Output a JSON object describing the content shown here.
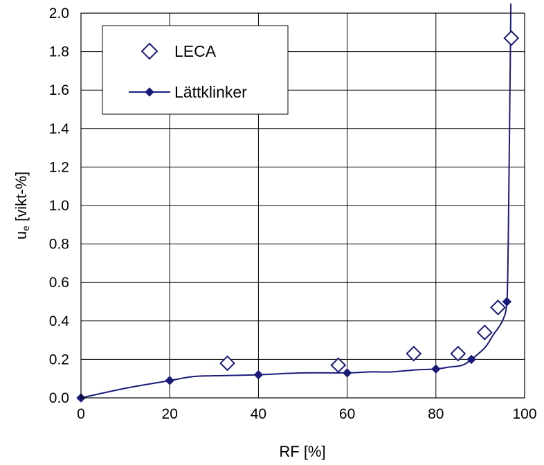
{
  "chart_data": {
    "type": "scatter",
    "xlabel": "RF [%]",
    "ylabel_main": "u",
    "ylabel_sub": "e",
    "ylabel_rest": " [vikt-%]",
    "xlim": [
      0,
      100
    ],
    "ylim": [
      0,
      2.0
    ],
    "x_ticks": [
      "0",
      "20",
      "40",
      "60",
      "80",
      "100"
    ],
    "y_ticks": [
      "0.0",
      "0.2",
      "0.4",
      "0.6",
      "0.8",
      "1.0",
      "1.2",
      "1.4",
      "1.6",
      "1.8",
      "2.0"
    ],
    "grid": true,
    "legend_position": "top-left",
    "series": [
      {
        "name": "LECA",
        "marker": "open-diamond",
        "color": "#1a1a7a",
        "points": [
          [
            33,
            0.18
          ],
          [
            58,
            0.17
          ],
          [
            75,
            0.23
          ],
          [
            85,
            0.23
          ],
          [
            91,
            0.34
          ],
          [
            94,
            0.47
          ],
          [
            97,
            1.87
          ]
        ]
      },
      {
        "name": "Lättklinker",
        "marker": "filled-diamond-with-line",
        "color": "#1a1a7a",
        "points": [
          [
            0,
            0.0
          ],
          [
            20,
            0.09
          ],
          [
            40,
            0.12
          ],
          [
            60,
            0.13
          ],
          [
            80,
            0.15
          ],
          [
            88,
            0.2
          ],
          [
            96,
            0.5
          ]
        ],
        "curve": [
          [
            0,
            0.0
          ],
          [
            10,
            0.05
          ],
          [
            20,
            0.09
          ],
          [
            25,
            0.11
          ],
          [
            30,
            0.115
          ],
          [
            40,
            0.12
          ],
          [
            50,
            0.13
          ],
          [
            60,
            0.13
          ],
          [
            65,
            0.135
          ],
          [
            70,
            0.135
          ],
          [
            75,
            0.145
          ],
          [
            80,
            0.15
          ],
          [
            83,
            0.16
          ],
          [
            86,
            0.17
          ],
          [
            88,
            0.2
          ],
          [
            91,
            0.26
          ],
          [
            93,
            0.33
          ],
          [
            95,
            0.4
          ],
          [
            96,
            0.5
          ],
          [
            96.3,
            0.8
          ],
          [
            96.5,
            1.2
          ],
          [
            96.7,
            1.6
          ],
          [
            96.9,
            2.05
          ]
        ]
      }
    ]
  }
}
